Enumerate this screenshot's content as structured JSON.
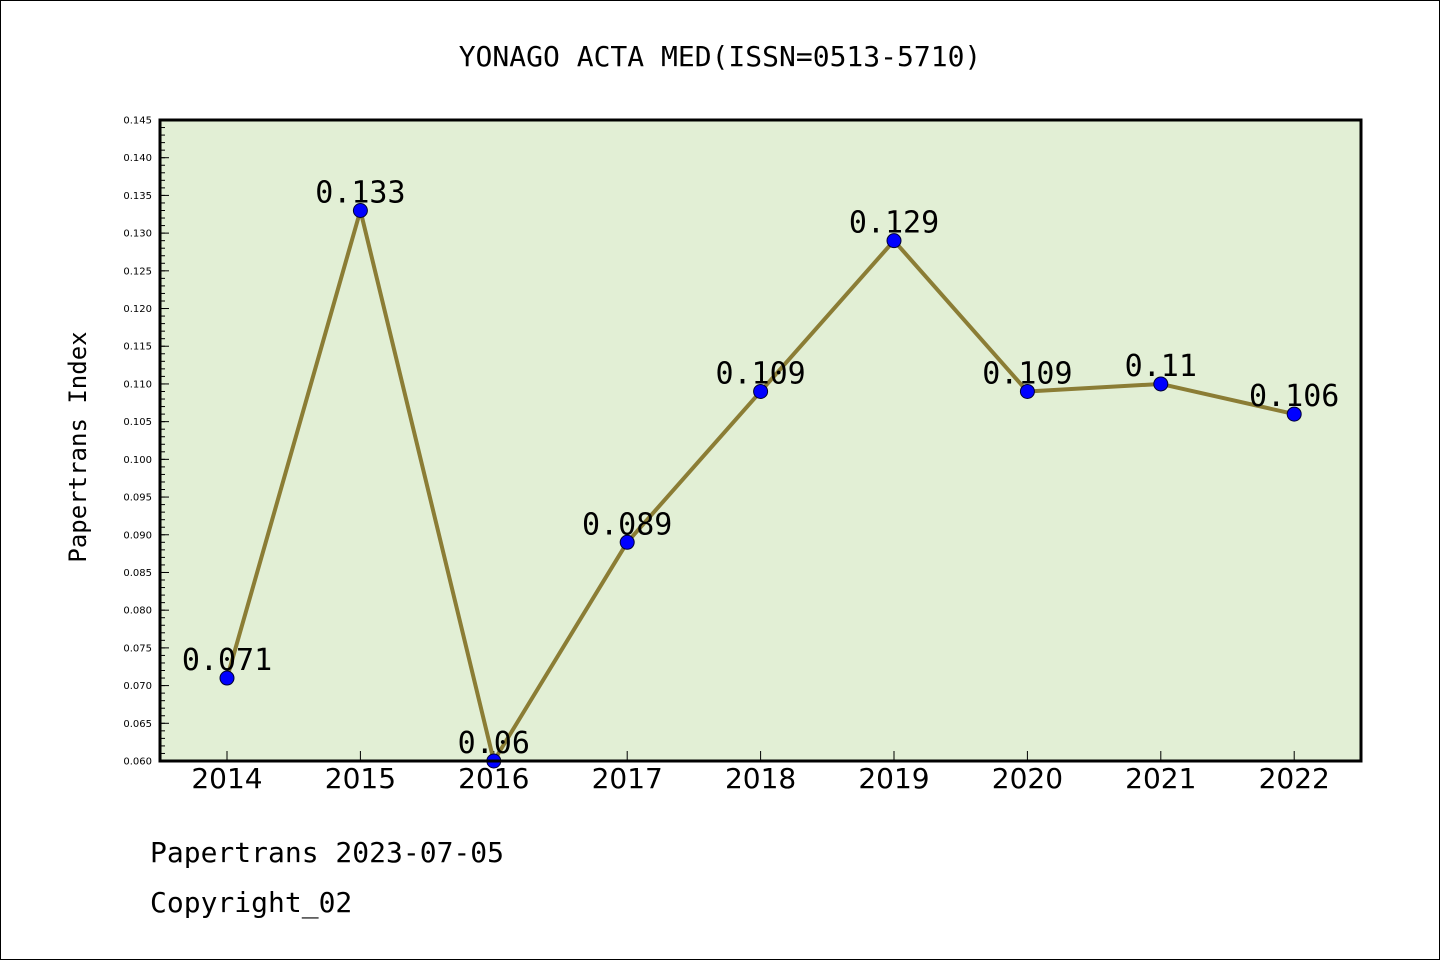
{
  "chart_data": {
    "type": "line",
    "title": "YONAGO ACTA MED(ISSN=0513-5710)",
    "ylabel": "Papertrans Index",
    "xlabel": "",
    "categories": [
      "2014",
      "2015",
      "2016",
      "2017",
      "2018",
      "2019",
      "2020",
      "2021",
      "2022"
    ],
    "values": [
      0.071,
      0.133,
      0.06,
      0.089,
      0.109,
      0.129,
      0.109,
      0.11,
      0.106
    ],
    "data_labels": [
      "0.071",
      "0.133",
      "0.06",
      "0.089",
      "0.109",
      "0.129",
      "0.109",
      "0.11",
      "0.106"
    ],
    "ylim": [
      0.06,
      0.145
    ],
    "yticks": [
      "0.060",
      "0.065",
      "0.070",
      "0.075",
      "0.080",
      "0.085",
      "0.090",
      "0.095",
      "0.100",
      "0.105",
      "0.110",
      "0.115",
      "0.120",
      "0.125",
      "0.130",
      "0.135",
      "0.140",
      "0.145"
    ],
    "grid": false,
    "colors": {
      "plot_bg": "#e2efd5",
      "line": "#8b7d35",
      "marker": "#0000ff"
    }
  },
  "footer": {
    "date_line": "Papertrans 2023-07-05",
    "copyright": "Copyright_02"
  }
}
